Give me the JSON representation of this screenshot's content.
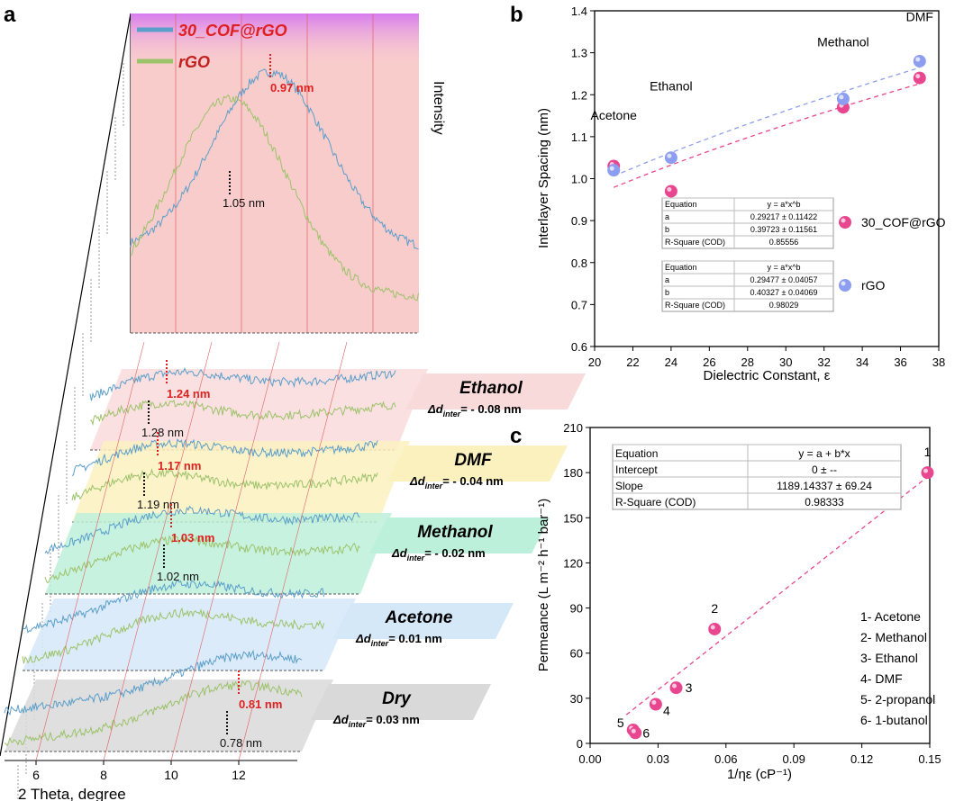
{
  "chart_data": [
    {
      "panel": "a",
      "type": "line",
      "xlabel": "2 Theta, degree",
      "ylabel": "Intensity",
      "xticks": [
        "6",
        "8",
        "10",
        "12"
      ],
      "legend": [
        "30_COF@rGO",
        "rGO"
      ],
      "colors": {
        "cof": "#5b9ec9",
        "rgo": "#9cc26a",
        "peak_cof": "#e02020",
        "peak_rgo": "#111111"
      },
      "layers": [
        {
          "label": "",
          "delta": "",
          "cof_peak": "0.97 nm",
          "rgo_peak": "1.05 nm",
          "fill": "#f9cccc"
        },
        {
          "label": "Ethanol",
          "delta": "= - 0.08 nm",
          "cof_peak": "1.24 nm",
          "rgo_peak": "1.28 nm",
          "fill": "#f9dada"
        },
        {
          "label": "DMF",
          "delta": "= - 0.04 nm",
          "cof_peak": "1.17 nm",
          "rgo_peak": "1.19 nm",
          "fill": "#fbf1bf"
        },
        {
          "label": "Methanol",
          "delta": "= - 0.02 nm",
          "cof_peak": "1.03 nm",
          "rgo_peak": "1.02 nm",
          "fill": "#bdf0da"
        },
        {
          "label": "Acetone",
          "delta": "= 0.01 nm",
          "cof_peak": "",
          "rgo_peak": "",
          "fill": "#d5e8f8"
        },
        {
          "label": "Dry",
          "delta": "= 0.03 nm",
          "cof_peak": "0.81 nm",
          "rgo_peak": "0.78 nm",
          "fill": "#d9d9d9"
        }
      ],
      "delta_symbol": "Δd",
      "delta_sub": "inter"
    },
    {
      "panel": "b",
      "type": "scatter",
      "xlabel": "Dielectric Constant, ε",
      "ylabel": "Interlayer Spacing (nm)",
      "xlim": [
        20,
        38
      ],
      "ylim": [
        0.6,
        1.4
      ],
      "xticks": [
        20,
        22,
        24,
        26,
        28,
        30,
        32,
        34,
        36,
        38
      ],
      "yticks": [
        0.6,
        0.7,
        0.8,
        0.9,
        1.0,
        1.1,
        1.2,
        1.3,
        1.4
      ],
      "point_labels": [
        {
          "text": "Acetone",
          "x": 21
        },
        {
          "text": "Ethanol",
          "x": 24
        },
        {
          "text": "Methanol",
          "x": 33
        },
        {
          "text": "DMF",
          "x": 37
        }
      ],
      "series": [
        {
          "name": "30_COF@rGO",
          "color": "#e8468f",
          "x": [
            21,
            24,
            33,
            37
          ],
          "y": [
            1.03,
            0.97,
            1.17,
            1.24
          ],
          "fit": {
            "a": 0.29217,
            "b": 0.39723
          },
          "table": [
            [
              "Equation",
              "y = a*x^b"
            ],
            [
              "a",
              "0.29217 ± 0.11422"
            ],
            [
              "b",
              "0.39723 ± 0.11561"
            ],
            [
              "R-Square (COD)",
              "0.85556"
            ]
          ]
        },
        {
          "name": "rGO",
          "color": "#8d9ef0",
          "x": [
            21,
            24,
            33,
            37
          ],
          "y": [
            1.02,
            1.05,
            1.19,
            1.28
          ],
          "fit": {
            "a": 0.29477,
            "b": 0.40327
          },
          "table": [
            [
              "Equation",
              "y = a*x^b"
            ],
            [
              "a",
              "0.29477 ± 0.04057"
            ],
            [
              "b",
              "0.40327 ± 0.04069"
            ],
            [
              "R-Square (COD)",
              "0.98029"
            ]
          ]
        }
      ]
    },
    {
      "panel": "c",
      "type": "scatter",
      "xlabel": "1/ηε (cP⁻¹)",
      "ylabel": "Permeance (L m⁻² h⁻¹ bar⁻¹)",
      "xlim": [
        0,
        0.15
      ],
      "ylim": [
        0,
        210
      ],
      "xticks": [
        "0.00",
        "0.03",
        "0.06",
        "0.09",
        "0.12",
        "0.15"
      ],
      "yticks": [
        0,
        30,
        60,
        90,
        120,
        150,
        180,
        210
      ],
      "color": "#e8468f",
      "points": [
        {
          "id": "1",
          "x": 0.149,
          "y": 180
        },
        {
          "id": "2",
          "x": 0.055,
          "y": 76
        },
        {
          "id": "3",
          "x": 0.038,
          "y": 37
        },
        {
          "id": "4",
          "x": 0.029,
          "y": 26
        },
        {
          "id": "5",
          "x": 0.019,
          "y": 9
        },
        {
          "id": "6",
          "x": 0.02,
          "y": 7
        }
      ],
      "fit": {
        "intercept": 0,
        "slope": 1189.14337
      },
      "table": [
        [
          "Equation",
          "y = a + b*x"
        ],
        [
          "Intercept",
          "0 ± --"
        ],
        [
          "Slope",
          "1189.14337 ± 69.24"
        ],
        [
          "R-Square (COD)",
          "0.98333"
        ]
      ],
      "legend": [
        "1- Acetone",
        "2- Methanol",
        "3- Ethanol",
        "4- DMF",
        "5- 2-propanol",
        "6- 1-butanol"
      ]
    }
  ],
  "panel_letters": [
    "a",
    "b",
    "c"
  ]
}
